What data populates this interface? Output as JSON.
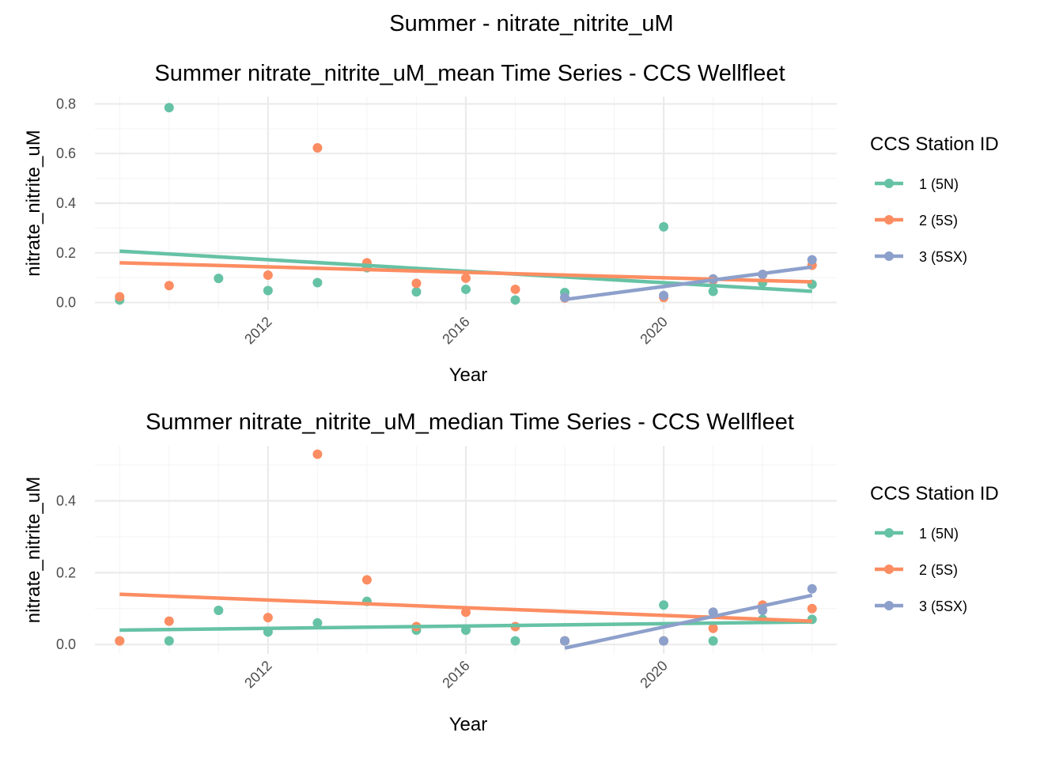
{
  "figure_title": "Summer - nitrate_nitrite_uM",
  "colors": {
    "1 (5N)": "#66c2a5",
    "2 (5S)": "#fc8d62",
    "3 (5SX)": "#8da0cb",
    "grid_major": "#ebebeb",
    "grid_minor": "#f5f5f5"
  },
  "chart_data": [
    {
      "type": "scatter",
      "title": "Summer nitrate_nitrite_uM_mean Time Series - CCS Wellfleet",
      "xlabel": "Year",
      "ylabel": "nitrate_nitrite_uM",
      "xlim": [
        2008.5,
        2023.5
      ],
      "ylim": [
        -0.03,
        0.83
      ],
      "x_ticks": [
        2012,
        2016,
        2020
      ],
      "y_ticks": [
        0.0,
        0.2,
        0.4,
        0.6,
        0.8
      ],
      "y_tick_labels": [
        "0.0",
        "0.2",
        "0.4",
        "0.6",
        "0.8"
      ],
      "grid": true,
      "legend": {
        "title": "CCS Station ID",
        "position": "right"
      },
      "series": [
        {
          "name": "1 (5N)",
          "points": [
            [
              2009,
              0.01
            ],
            [
              2010,
              0.785
            ],
            [
              2011,
              0.097
            ],
            [
              2012,
              0.048
            ],
            [
              2013,
              0.08
            ],
            [
              2014,
              0.14
            ],
            [
              2015,
              0.043
            ],
            [
              2016,
              0.053
            ],
            [
              2017,
              0.01
            ],
            [
              2018,
              0.04
            ],
            [
              2020,
              0.305
            ],
            [
              2021,
              0.045
            ],
            [
              2022,
              0.08
            ],
            [
              2023,
              0.073
            ]
          ],
          "trend": [
            [
              2009,
              0.207
            ],
            [
              2023,
              0.045
            ]
          ]
        },
        {
          "name": "2 (5S)",
          "points": [
            [
              2009,
              0.023
            ],
            [
              2010,
              0.068
            ],
            [
              2012,
              0.11
            ],
            [
              2013,
              0.623
            ],
            [
              2014,
              0.16
            ],
            [
              2015,
              0.077
            ],
            [
              2016,
              0.098
            ],
            [
              2017,
              0.053
            ],
            [
              2018,
              0.018
            ],
            [
              2020,
              0.02
            ],
            [
              2021,
              0.09
            ],
            [
              2022,
              0.113
            ],
            [
              2023,
              0.15
            ]
          ],
          "trend": [
            [
              2009,
              0.16
            ],
            [
              2023,
              0.083
            ]
          ]
        },
        {
          "name": "3 (5SX)",
          "points": [
            [
              2018,
              0.02
            ],
            [
              2020,
              0.028
            ],
            [
              2021,
              0.095
            ],
            [
              2022,
              0.113
            ],
            [
              2023,
              0.172
            ]
          ],
          "trend": [
            [
              2018,
              0.012
            ],
            [
              2023,
              0.143
            ]
          ]
        }
      ]
    },
    {
      "type": "scatter",
      "title": "Summer nitrate_nitrite_uM_median Time Series - CCS Wellfleet",
      "xlabel": "Year",
      "ylabel": "nitrate_nitrite_uM",
      "xlim": [
        2008.5,
        2023.5
      ],
      "ylim": [
        -0.026,
        0.553
      ],
      "x_ticks": [
        2012,
        2016,
        2020
      ],
      "y_ticks": [
        0.0,
        0.2,
        0.4
      ],
      "y_tick_labels": [
        "0.0",
        "0.2",
        "0.4"
      ],
      "grid": true,
      "legend": {
        "title": "CCS Station ID",
        "position": "right"
      },
      "series": [
        {
          "name": "1 (5N)",
          "points": [
            [
              2009,
              0.01
            ],
            [
              2010,
              0.01
            ],
            [
              2011,
              0.095
            ],
            [
              2012,
              0.035
            ],
            [
              2013,
              0.06
            ],
            [
              2014,
              0.12
            ],
            [
              2015,
              0.04
            ],
            [
              2016,
              0.04
            ],
            [
              2017,
              0.01
            ],
            [
              2018,
              0.01
            ],
            [
              2020,
              0.11
            ],
            [
              2021,
              0.01
            ],
            [
              2022,
              0.07
            ],
            [
              2023,
              0.07
            ]
          ],
          "trend": [
            [
              2009,
              0.04
            ],
            [
              2023,
              0.063
            ]
          ]
        },
        {
          "name": "2 (5S)",
          "points": [
            [
              2009,
              0.01
            ],
            [
              2010,
              0.065
            ],
            [
              2012,
              0.075
            ],
            [
              2013,
              0.53
            ],
            [
              2014,
              0.18
            ],
            [
              2015,
              0.05
            ],
            [
              2016,
              0.09
            ],
            [
              2017,
              0.05
            ],
            [
              2018,
              0.01
            ],
            [
              2020,
              0.01
            ],
            [
              2021,
              0.045
            ],
            [
              2022,
              0.11
            ],
            [
              2023,
              0.1
            ]
          ],
          "trend": [
            [
              2009,
              0.14
            ],
            [
              2023,
              0.065
            ]
          ]
        },
        {
          "name": "3 (5SX)",
          "points": [
            [
              2018,
              0.01
            ],
            [
              2020,
              0.01
            ],
            [
              2021,
              0.09
            ],
            [
              2022,
              0.095
            ],
            [
              2023,
              0.155
            ]
          ],
          "trend": [
            [
              2018,
              -0.01
            ],
            [
              2023,
              0.137
            ]
          ]
        }
      ]
    }
  ]
}
